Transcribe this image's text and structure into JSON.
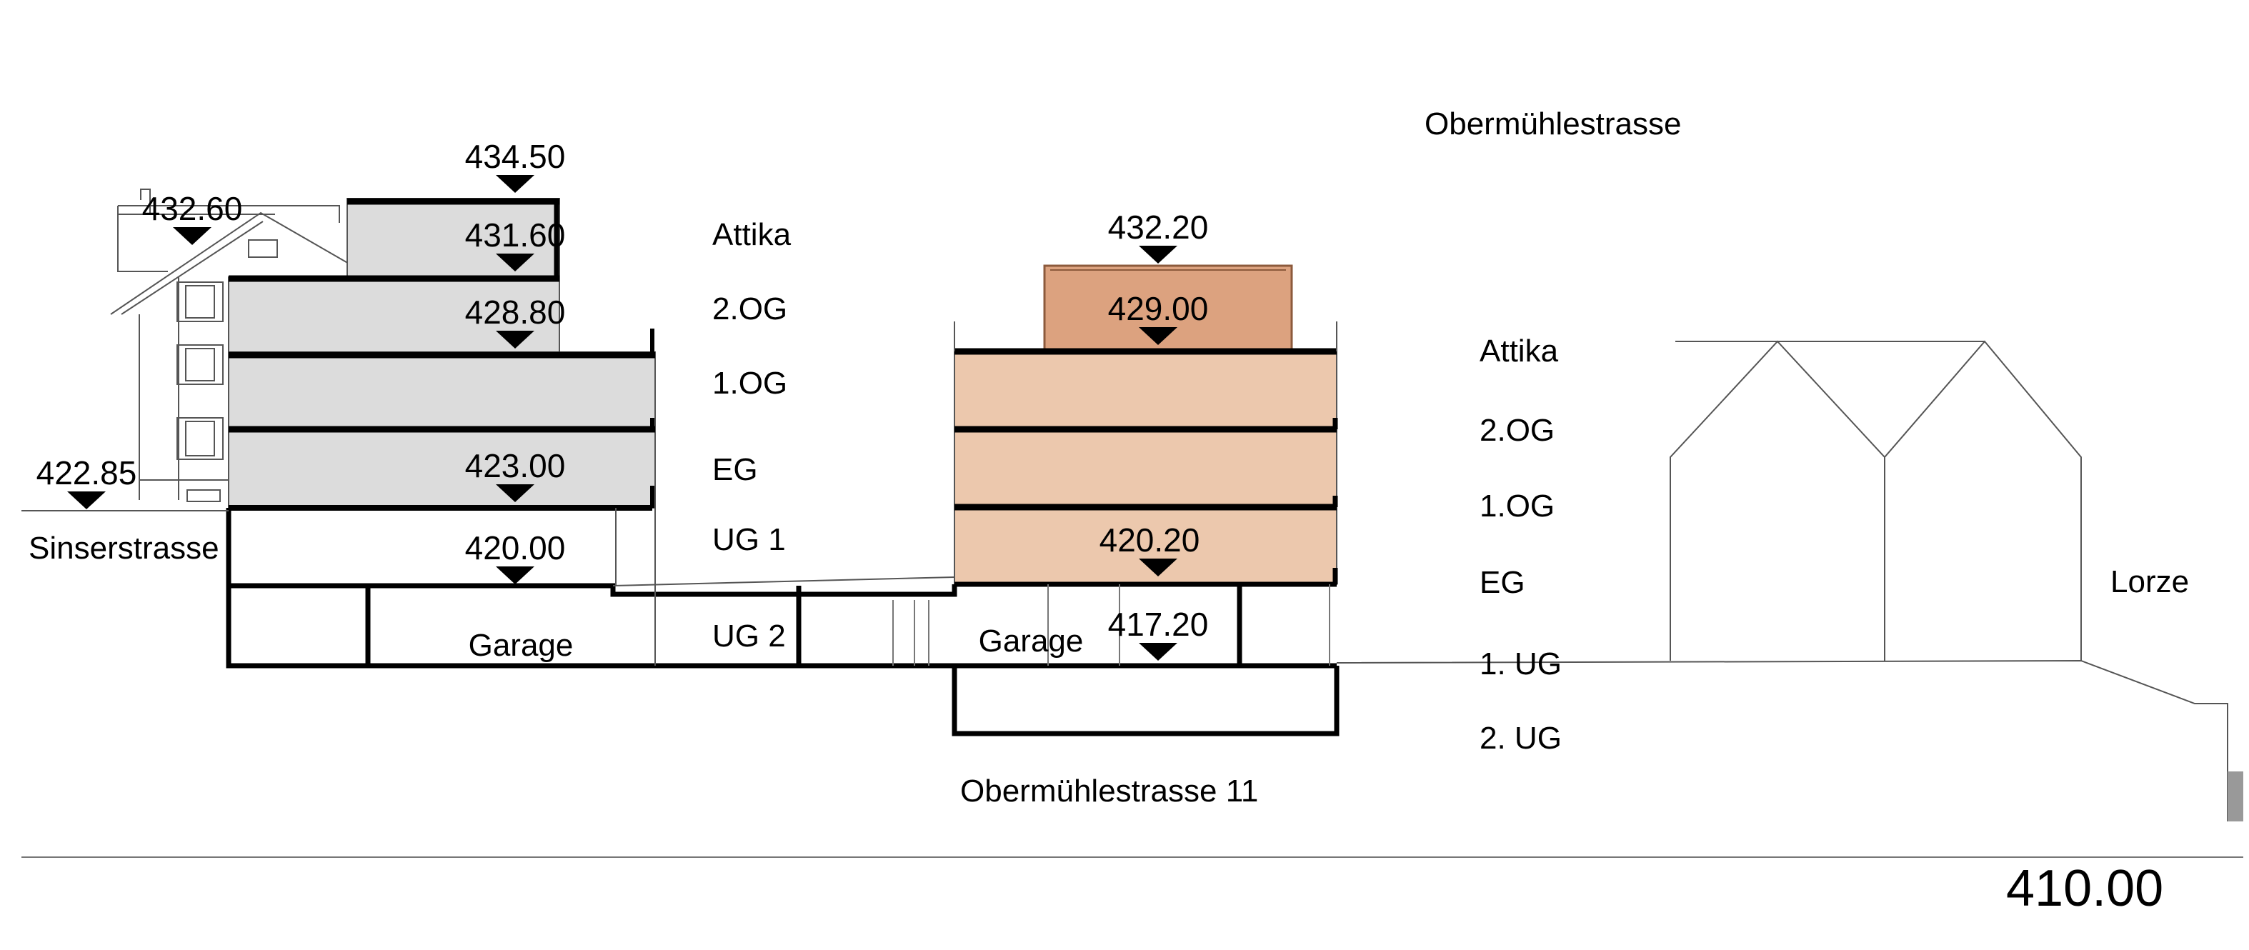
{
  "street_top": "Obermühlestrasse",
  "street_left": "Sinserstrasse",
  "river": "Lorze",
  "building_address": "Obermühlestrasse 11",
  "datum_level": "410.00",
  "elevations": {
    "left_roof_top": "434.50",
    "left_neighbor_ridge": "432.60",
    "left_attika": "431.60",
    "left_2og": "428.80",
    "left_street": "422.85",
    "left_eg": "423.00",
    "left_ug1": "420.00",
    "right_roof": "432.20",
    "right_attika": "429.00",
    "right_ug1": "420.20",
    "right_garage": "417.20"
  },
  "floors_left": [
    "Attika",
    "2.OG",
    "1.OG",
    "EG",
    "UG 1",
    "UG 2"
  ],
  "floors_right": [
    "Attika",
    "2.OG",
    "1.OG",
    "EG",
    "1. UG",
    "2. UG"
  ],
  "garage_left": "Garage",
  "garage_right": "Garage",
  "colors": {
    "existing_fill": "#dcdcdc",
    "new_fill": "#ecc8ad",
    "attika_fill": "#dca27f",
    "line": "#000000",
    "thin_line": "#555555"
  }
}
